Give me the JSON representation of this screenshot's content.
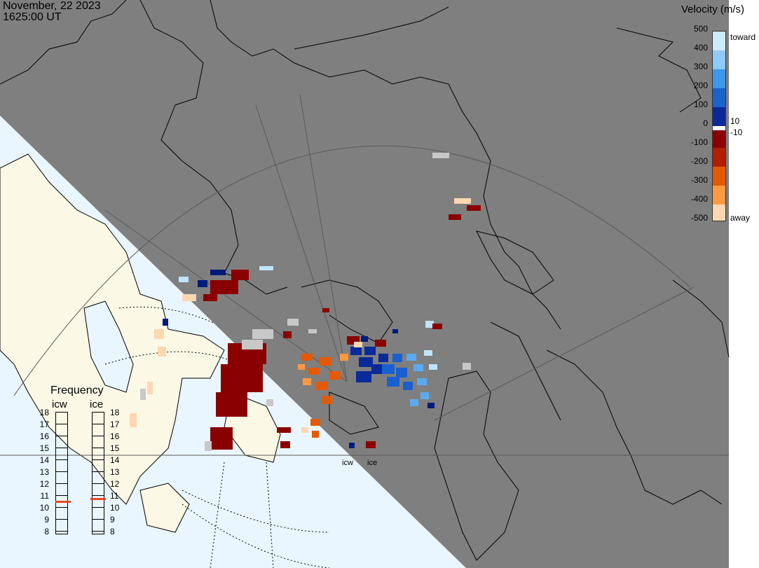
{
  "header": {
    "date": "November, 22 2023",
    "time": "1625:00 UT"
  },
  "velocity_legend": {
    "title": "Velocity (m/s)",
    "ticks": [
      "500",
      "400",
      "300",
      "200",
      "100",
      "0",
      "-100",
      "-200",
      "-300",
      "-400",
      "-500"
    ],
    "toward_label": "toward",
    "away_label": "away",
    "threshold_pos": "10",
    "threshold_neg": "-10",
    "colors": {
      "toward_light": "#bfe4ff",
      "toward_mid": "#1a7fe0",
      "toward_dark": "#001a7a",
      "away_dark": "#8a0000",
      "away_mid": "#e55a00",
      "away_light": "#ffd7b0",
      "ground_scatter": "#c8c8c8"
    }
  },
  "frequency_legend": {
    "title": "Frequency",
    "columns": [
      {
        "name": "icw",
        "selected_mhz": 10.5
      },
      {
        "name": "ice",
        "selected_mhz": 10.7
      }
    ],
    "ticks": [
      "18",
      "17",
      "16",
      "15",
      "14",
      "13",
      "12",
      "11",
      "10",
      "9",
      "8"
    ],
    "marker_color": "#e8491d"
  },
  "radars": [
    {
      "label": "icw"
    },
    {
      "label": "ice"
    }
  ],
  "map": {
    "night_color": "#7f7f7f",
    "day_land_color": "#fbf9e6",
    "day_ocean_color": "#e9f6ff"
  }
}
